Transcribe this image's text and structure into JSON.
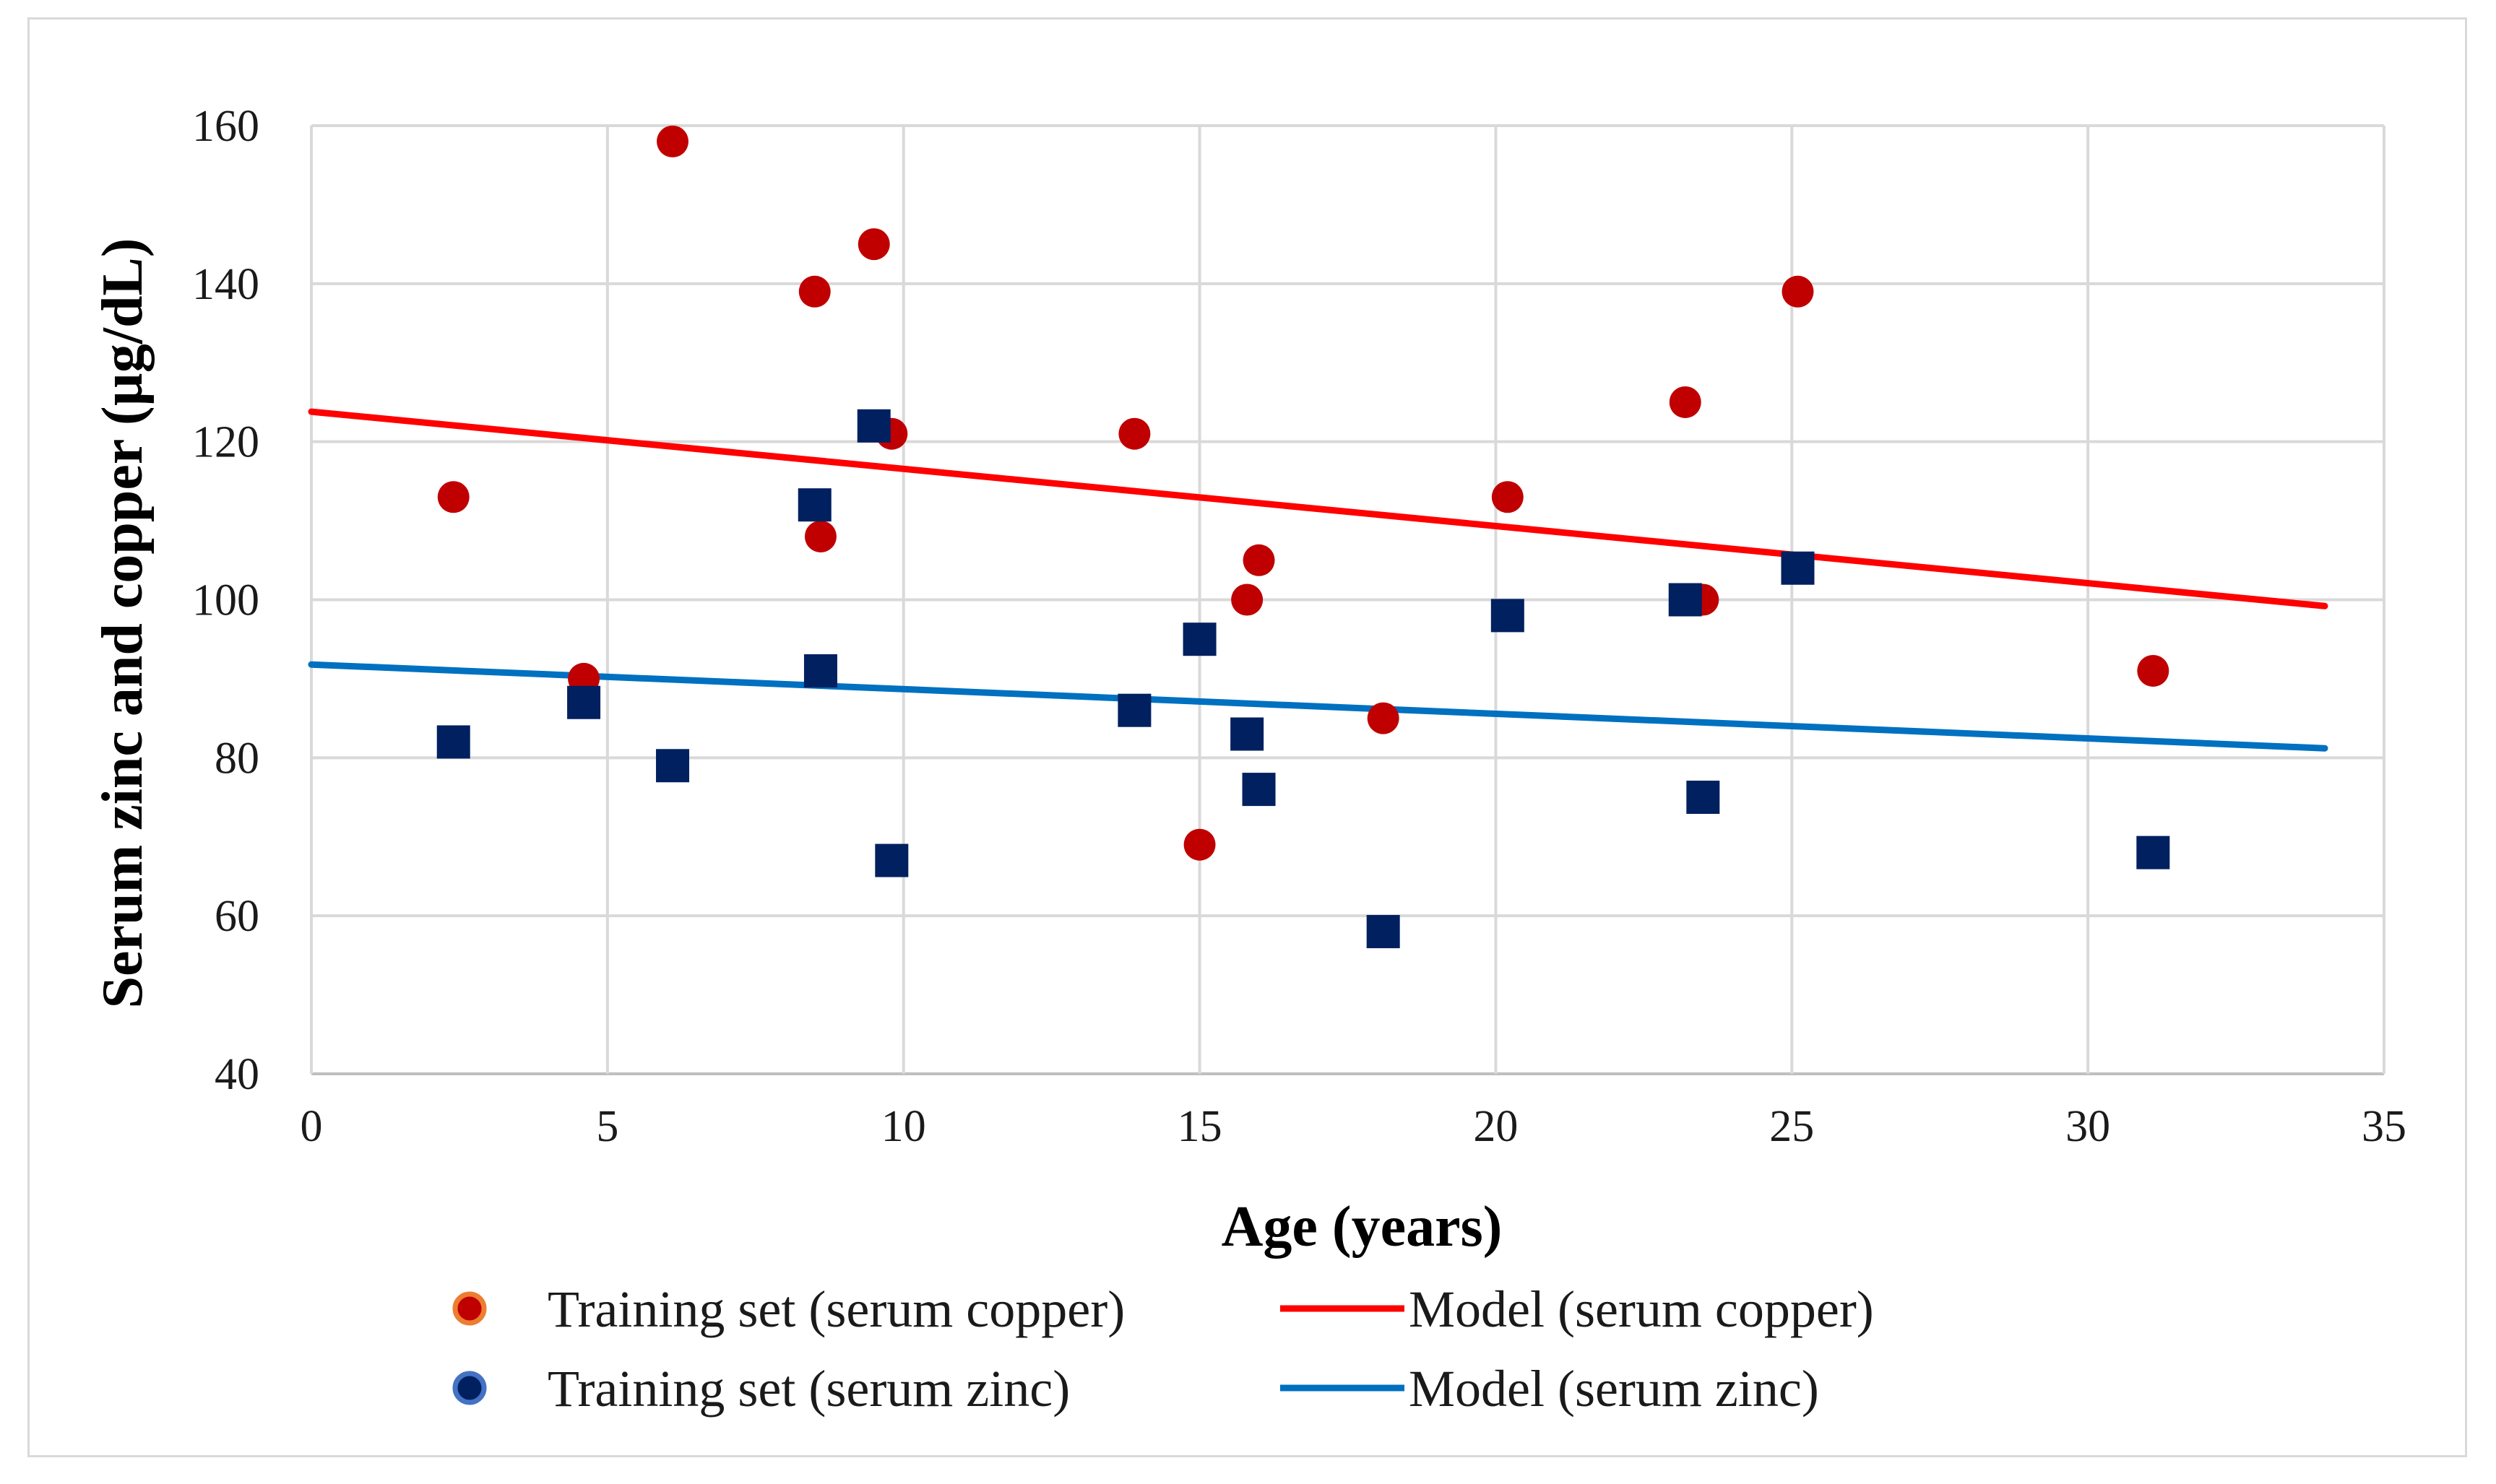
{
  "chart_data": {
    "type": "scatter",
    "title": "",
    "xlabel": "Age (years)",
    "ylabel": "Serum zinc and copper (µg/dL)",
    "xlim": [
      0,
      35
    ],
    "ylim": [
      40,
      160
    ],
    "xticks": [
      0,
      5,
      10,
      15,
      20,
      25,
      30,
      35
    ],
    "yticks": [
      40,
      60,
      80,
      100,
      120,
      140,
      160
    ],
    "grid": true,
    "legend_position": "bottom",
    "series": [
      {
        "name": "Training set (serum copper)",
        "kind": "scatter",
        "marker": "circle",
        "color": "#c00000",
        "legend_edge_color": "#ed7d31",
        "points": [
          [
            2.4,
            113
          ],
          [
            4.6,
            90
          ],
          [
            6.1,
            158
          ],
          [
            8.5,
            139
          ],
          [
            8.6,
            108
          ],
          [
            9.5,
            145
          ],
          [
            9.8,
            121
          ],
          [
            13.9,
            121
          ],
          [
            15.0,
            69
          ],
          [
            15.8,
            100
          ],
          [
            16.0,
            105
          ],
          [
            18.1,
            85
          ],
          [
            20.2,
            113
          ],
          [
            23.2,
            125
          ],
          [
            23.5,
            100
          ],
          [
            25.1,
            139
          ],
          [
            31.1,
            91
          ]
        ]
      },
      {
        "name": "Training set (serum zinc)",
        "kind": "scatter",
        "marker": "square",
        "color": "#002060",
        "legend_edge_color": "#4472c4",
        "points": [
          [
            2.4,
            82
          ],
          [
            4.6,
            87
          ],
          [
            6.1,
            79
          ],
          [
            8.5,
            112
          ],
          [
            8.6,
            91
          ],
          [
            9.5,
            122
          ],
          [
            9.8,
            67
          ],
          [
            13.9,
            86
          ],
          [
            15.0,
            95
          ],
          [
            15.8,
            83
          ],
          [
            16.0,
            76
          ],
          [
            18.1,
            58
          ],
          [
            20.2,
            98
          ],
          [
            23.2,
            100
          ],
          [
            23.5,
            75
          ],
          [
            25.1,
            104
          ],
          [
            31.1,
            68
          ]
        ]
      },
      {
        "name": "Model (serum copper)",
        "kind": "line",
        "color": "#ff0000",
        "points": [
          [
            0,
            123.8
          ],
          [
            34,
            99.2
          ]
        ]
      },
      {
        "name": "Model (serum zinc)",
        "kind": "line",
        "color": "#0070c0",
        "points": [
          [
            0,
            91.8
          ],
          [
            34,
            81.2
          ]
        ]
      }
    ]
  }
}
